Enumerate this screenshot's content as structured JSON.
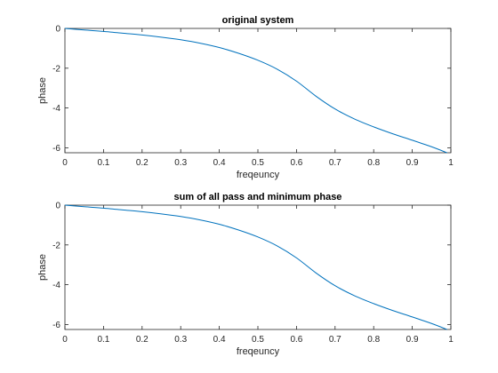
{
  "figure": {
    "background": "#ffffff",
    "axis_color": "#262626",
    "line_color": "#0072bd"
  },
  "chart_data": [
    {
      "type": "line",
      "title": "original system",
      "xlabel": "freqeuncy",
      "ylabel": "phase",
      "xlim": [
        0,
        1
      ],
      "ylim": [
        -6.25,
        0
      ],
      "xticks": [
        "0",
        "0.1",
        "0.2",
        "0.3",
        "0.4",
        "0.5",
        "0.6",
        "0.7",
        "0.8",
        "0.9",
        "1"
      ],
      "yticks": [
        "0",
        "-2",
        "-4",
        "-6"
      ],
      "grid": false,
      "series": [
        {
          "x": [
            0,
            0.05,
            0.1,
            0.15,
            0.2,
            0.25,
            0.3,
            0.35,
            0.4,
            0.45,
            0.5,
            0.55,
            0.6,
            0.65,
            0.7,
            0.75,
            0.8,
            0.85,
            0.9,
            0.95,
            0.99
          ],
          "y": [
            0,
            -0.08,
            -0.15,
            -0.24,
            -0.33,
            -0.44,
            -0.57,
            -0.74,
            -0.96,
            -1.25,
            -1.6,
            -2.05,
            -2.65,
            -3.4,
            -4.05,
            -4.55,
            -4.95,
            -5.3,
            -5.62,
            -5.95,
            -6.25
          ]
        }
      ]
    },
    {
      "type": "line",
      "title": "sum of all pass and minimum phase",
      "xlabel": "freqeuncy",
      "ylabel": "phase",
      "xlim": [
        0,
        1
      ],
      "ylim": [
        -6.25,
        0
      ],
      "xticks": [
        "0",
        "0.1",
        "0.2",
        "0.3",
        "0.4",
        "0.5",
        "0.6",
        "0.7",
        "0.8",
        "0.9",
        "1"
      ],
      "yticks": [
        "0",
        "-2",
        "-4",
        "-6"
      ],
      "grid": false,
      "series": [
        {
          "x": [
            0,
            0.05,
            0.1,
            0.15,
            0.2,
            0.25,
            0.3,
            0.35,
            0.4,
            0.45,
            0.5,
            0.55,
            0.6,
            0.65,
            0.7,
            0.75,
            0.8,
            0.85,
            0.9,
            0.95,
            0.99
          ],
          "y": [
            0,
            -0.08,
            -0.15,
            -0.24,
            -0.33,
            -0.44,
            -0.57,
            -0.74,
            -0.96,
            -1.25,
            -1.6,
            -2.05,
            -2.65,
            -3.4,
            -4.05,
            -4.55,
            -4.95,
            -5.3,
            -5.62,
            -5.95,
            -6.25
          ]
        }
      ]
    }
  ]
}
